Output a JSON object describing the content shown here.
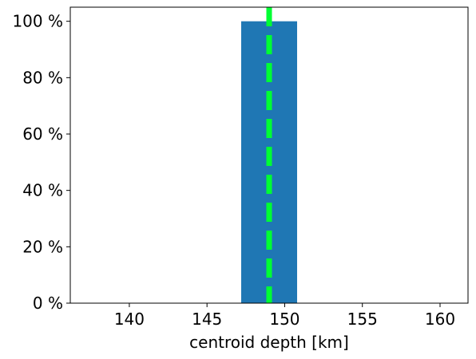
{
  "chart_data": {
    "type": "bar",
    "title": "",
    "xlabel": "centroid depth [km]",
    "ylabel": "",
    "xlim": [
      136.2,
      161.8
    ],
    "ylim": [
      0,
      105
    ],
    "xticks": [
      140,
      145,
      150,
      155,
      160
    ],
    "xtick_labels": [
      "140",
      "145",
      "150",
      "155",
      "160"
    ],
    "yticks": [
      0,
      20,
      40,
      60,
      80,
      100
    ],
    "ytick_labels": [
      "0 %",
      "20 %",
      "40 %",
      "60 %",
      "80 %",
      "100 %"
    ],
    "grid": false,
    "legend": "none",
    "bars": [
      {
        "x_start": 147.2,
        "x_end": 150.8,
        "value": 100,
        "color": "#1f77b4"
      }
    ],
    "reference_lines": [
      {
        "orientation": "vertical",
        "x": 149,
        "style": "dashed",
        "color": "#00ff33"
      }
    ]
  }
}
